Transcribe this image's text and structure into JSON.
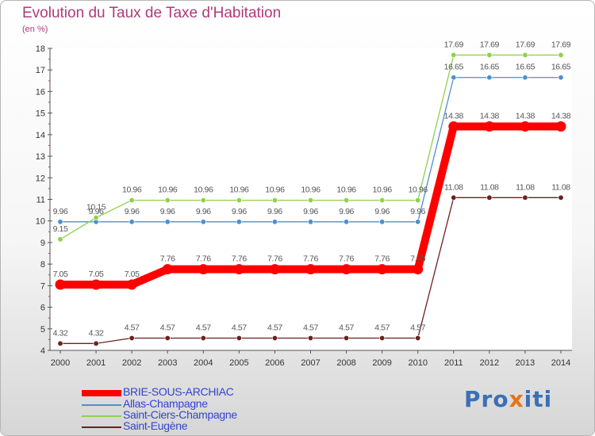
{
  "title": "Evolution du Taux de Taxe d'Habitation",
  "subtitle": "(en %)",
  "logo": {
    "pre": "Pro",
    "mid": "x",
    "post": "iti"
  },
  "chart_data": {
    "type": "line",
    "x": [
      "2000",
      "2001",
      "2002",
      "2003",
      "2004",
      "2005",
      "2006",
      "2007",
      "2008",
      "2009",
      "2010",
      "2011",
      "2012",
      "2013",
      "2014"
    ],
    "ylim": [
      4,
      18
    ],
    "yticks": [
      "4",
      "5",
      "6",
      "7",
      "8",
      "9",
      "10",
      "11",
      "12",
      "13",
      "14",
      "15",
      "16",
      "17",
      "18"
    ],
    "series": [
      {
        "name": "BRIE-SOUS-ARCHIAC",
        "color": "#ff0000",
        "values": [
          7.05,
          7.05,
          7.05,
          7.76,
          7.76,
          7.76,
          7.76,
          7.76,
          7.76,
          7.76,
          7.76,
          14.38,
          14.38,
          14.38,
          14.38
        ],
        "labels": [
          "7.05",
          "7.05",
          "7.05",
          "7.76",
          "7.76",
          "7.76",
          "7.76",
          "7.76",
          "7.76",
          "7.76",
          "7.76",
          "14.38",
          "14.38",
          "14.38",
          "14.38"
        ]
      },
      {
        "name": "Allas-Champagne",
        "color": "#4f8fcc",
        "values": [
          9.96,
          9.96,
          9.96,
          9.96,
          9.96,
          9.96,
          9.96,
          9.96,
          9.96,
          9.96,
          9.96,
          16.65,
          16.65,
          16.65,
          16.65
        ],
        "labels": [
          "9.96",
          "9.96",
          "9.96",
          "9.96",
          "9.96",
          "9.96",
          "9.96",
          "9.96",
          "9.96",
          "9.96",
          "9.96",
          "16.65",
          "16.65",
          "16.65",
          "16.65"
        ]
      },
      {
        "name": "Saint-Ciers-Champagne",
        "color": "#8fd14a",
        "values": [
          9.15,
          10.15,
          10.96,
          10.96,
          10.96,
          10.96,
          10.96,
          10.96,
          10.96,
          10.96,
          10.96,
          17.69,
          17.69,
          17.69,
          17.69
        ],
        "labels": [
          "9.15",
          "10.15",
          "10.96",
          "10.96",
          "10.96",
          "10.96",
          "10.96",
          "10.96",
          "10.96",
          "10.96",
          "10.96",
          "17.69",
          "17.69",
          "17.69",
          "17.69"
        ]
      },
      {
        "name": "Saint-Eugène",
        "color": "#6b2020",
        "values": [
          4.32,
          4.32,
          4.57,
          4.57,
          4.57,
          4.57,
          4.57,
          4.57,
          4.57,
          4.57,
          4.57,
          11.08,
          11.08,
          11.08,
          11.08
        ],
        "labels": [
          "4.32",
          "4.32",
          "4.57",
          "4.57",
          "4.57",
          "4.57",
          "4.57",
          "4.57",
          "4.57",
          "4.57",
          "4.57",
          "11.08",
          "11.08",
          "11.08",
          "11.08"
        ]
      }
    ]
  }
}
